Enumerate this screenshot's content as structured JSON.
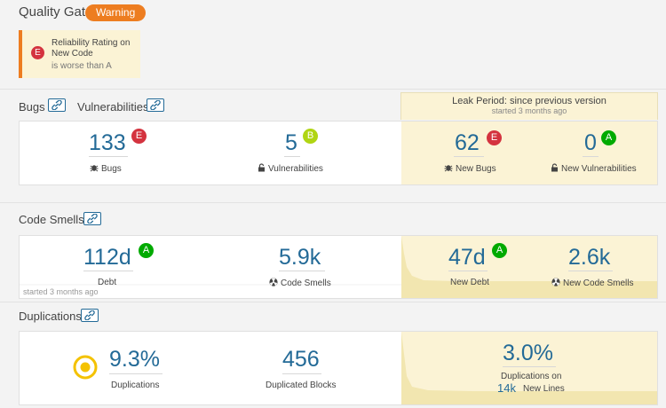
{
  "quality_gate": {
    "title": "Quality Gate",
    "status": "Warning",
    "condition": {
      "rating": "E",
      "metric": "Reliability Rating on New Code",
      "message": "is worse than A"
    }
  },
  "leak_period": {
    "title": "Leak Period: since previous version",
    "subtitle": "started 3 months ago"
  },
  "bugs_section": {
    "bugs_title": "Bugs",
    "vulnerabilities_title": "Vulnerabilities",
    "bugs": {
      "value": "133",
      "rating": "E",
      "label": "Bugs"
    },
    "vulnerabilities": {
      "value": "5",
      "rating": "B",
      "label": "Vulnerabilities"
    },
    "new_bugs": {
      "value": "62",
      "rating": "E",
      "label": "New Bugs"
    },
    "new_vulnerabilities": {
      "value": "0",
      "rating": "A",
      "label": "New Vulnerabilities"
    }
  },
  "code_smells_section": {
    "title": "Code Smells",
    "debt": {
      "value": "112d",
      "rating": "A",
      "label": "Debt",
      "note": "started 3 months ago"
    },
    "code_smells": {
      "value": "5.9k",
      "label": "Code Smells"
    },
    "new_debt": {
      "value": "47d",
      "rating": "A",
      "label": "New Debt"
    },
    "new_code_smells": {
      "value": "2.6k",
      "label": "New Code Smells"
    }
  },
  "duplications_section": {
    "title": "Duplications",
    "duplications": {
      "value": "9.3%",
      "label": "Duplications"
    },
    "duplicated_blocks": {
      "value": "456",
      "label": "Duplicated Blocks"
    },
    "new_duplications": {
      "value": "3.0%",
      "label_line1": "Duplications on",
      "lines_value": "14k",
      "label_line2": "New Lines"
    }
  },
  "colors": {
    "warning": "#ed7d20",
    "rating_e": "#d4333f",
    "rating_b": "#b0d513",
    "rating_a": "#00aa00",
    "link": "#236a97",
    "leak_bg": "#fbf3d5",
    "donut": "#f4c200"
  },
  "icons": [
    "link-icon",
    "bug-icon",
    "lock-icon",
    "code-smell-icon",
    "duplications-donut-icon"
  ]
}
